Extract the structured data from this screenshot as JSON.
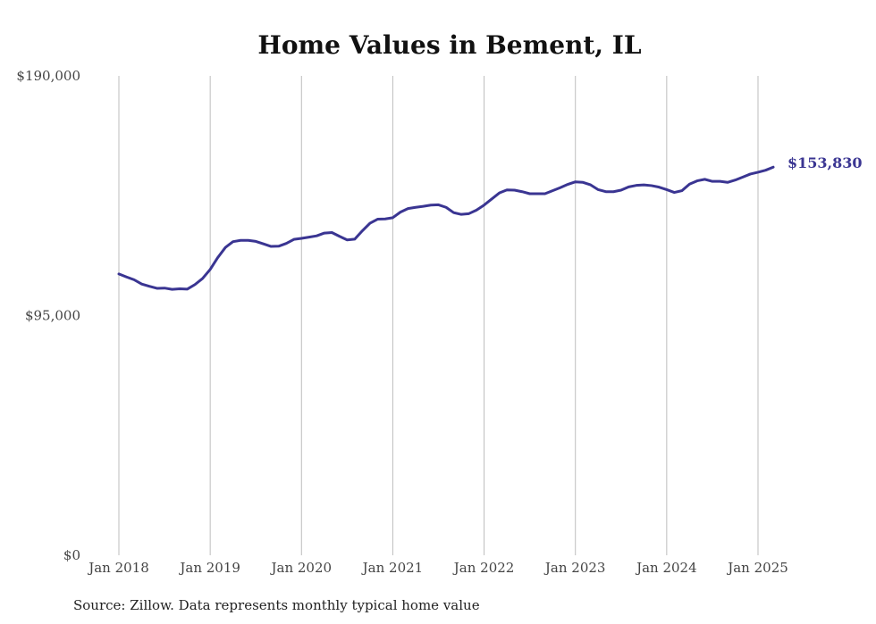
{
  "chart_data": {
    "type": "line",
    "title": "Home Values in Bement, IL",
    "xlabel": "",
    "ylabel": "",
    "ylim": [
      0,
      190000
    ],
    "y_ticks": [
      {
        "value": 0,
        "label": "$0"
      },
      {
        "value": 95000,
        "label": "$95,000"
      },
      {
        "value": 190000,
        "label": "$190,000"
      }
    ],
    "x_ticks": [
      "Jan 2018",
      "Jan 2019",
      "Jan 2020",
      "Jan 2021",
      "Jan 2022",
      "Jan 2023",
      "Jan 2024",
      "Jan 2025"
    ],
    "x_start": "2018-01",
    "grid": {
      "vertical": true,
      "horizontal": false
    },
    "line_color": "#3a3592",
    "end_label": "$153,830",
    "source": "Source: Zillow. Data represents monthly typical home value",
    "series": [
      {
        "values": [
          111500,
          110300,
          109200,
          107500,
          106600,
          105800,
          105900,
          105400,
          105600,
          105500,
          107300,
          109700,
          113300,
          118000,
          122000,
          124300,
          124800,
          124800,
          124400,
          123400,
          122400,
          122500,
          123600,
          125200,
          125600,
          126100,
          126600,
          127700,
          127900,
          126400,
          125000,
          125300,
          128600,
          131600,
          133200,
          133300,
          133800,
          136000,
          137400,
          137900,
          138300,
          138800,
          138900,
          137900,
          135800,
          135100,
          135400,
          136800,
          138800,
          141200,
          143600,
          144800,
          144700,
          144100,
          143300,
          143300,
          143300,
          144500,
          145700,
          147000,
          148000,
          147800,
          146800,
          144900,
          144100,
          144100,
          144700,
          146000,
          146600,
          146800,
          146500,
          145900,
          144900,
          143800,
          144500,
          147100,
          148400,
          149000,
          148200,
          148200,
          147800,
          148700,
          149900,
          151100,
          151800,
          152600,
          153830
        ]
      }
    ]
  }
}
